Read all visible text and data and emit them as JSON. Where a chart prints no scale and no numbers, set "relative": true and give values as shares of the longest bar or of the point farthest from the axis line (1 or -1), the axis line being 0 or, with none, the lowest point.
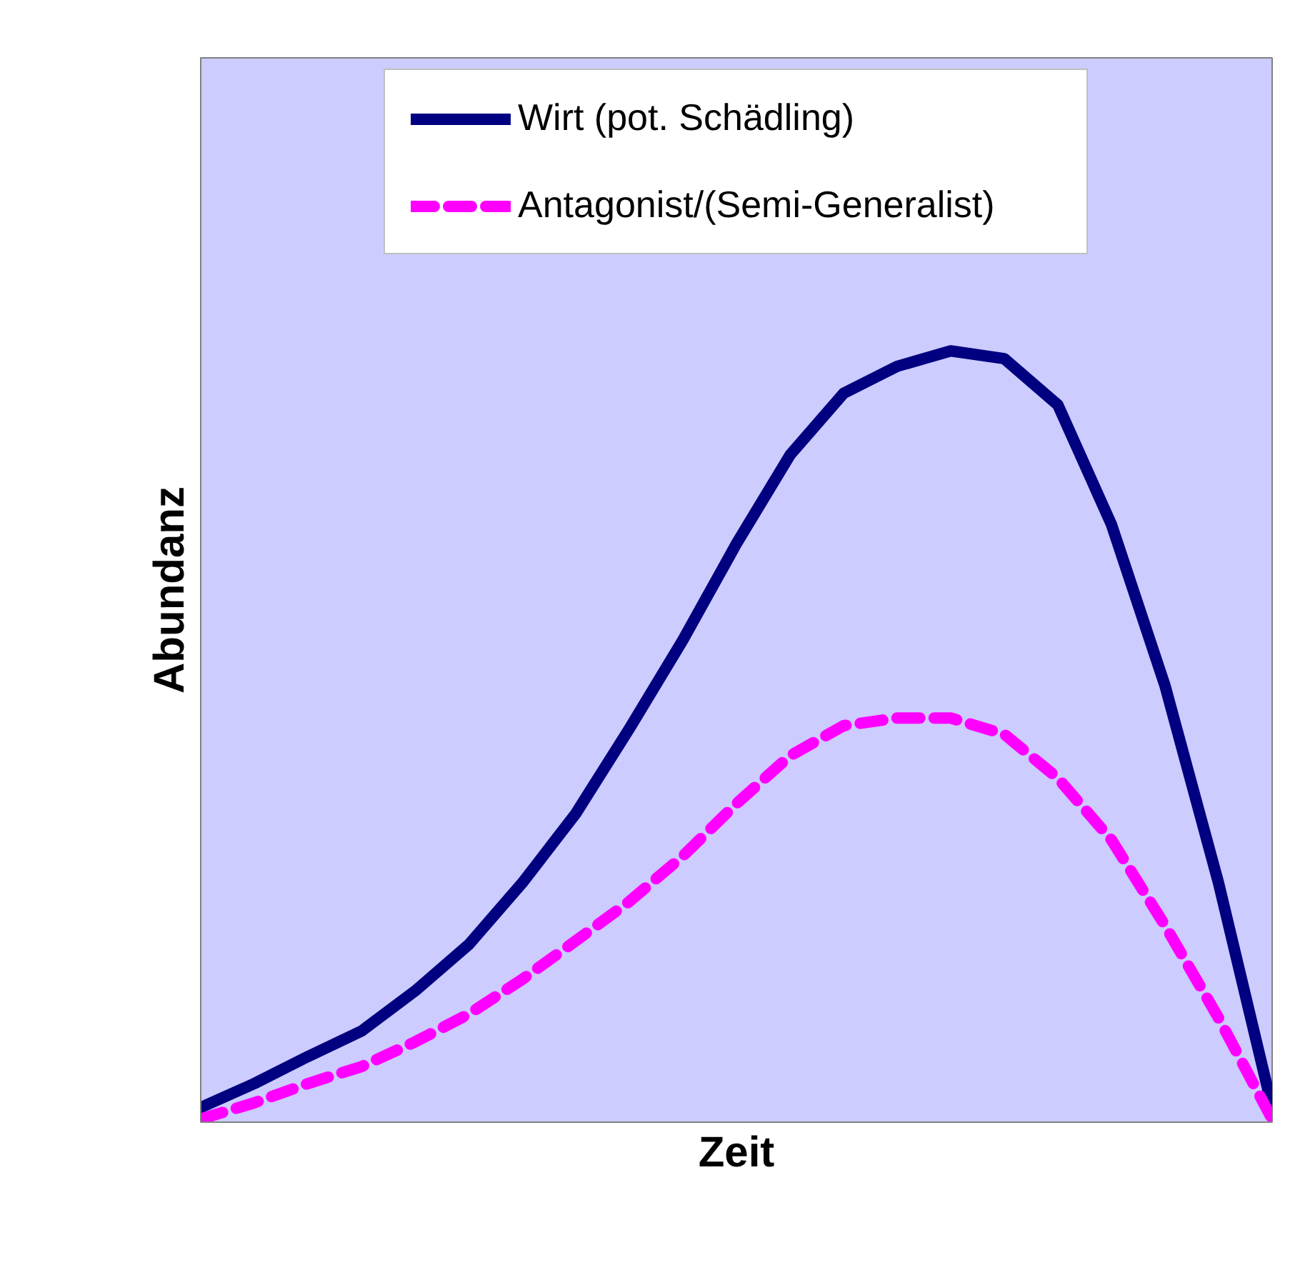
{
  "chart_data": {
    "type": "line",
    "relative": true,
    "xlabel": "Zeit",
    "ylabel": "Abundanz",
    "legend": "top",
    "categories": [
      null,
      null,
      null,
      null,
      null,
      null,
      null,
      null,
      null,
      null,
      null,
      null,
      null,
      null,
      null,
      null,
      null,
      null,
      null,
      null,
      null
    ],
    "series": [
      {
        "name": "Wirt (pot. Schädling)",
        "color": "#000080",
        "line_style": "solid",
        "values": [
          0.019,
          0.05,
          0.085,
          0.118,
          0.17,
          0.23,
          0.31,
          0.4,
          0.51,
          0.625,
          0.75,
          0.865,
          0.945,
          0.98,
          1.0,
          0.99,
          0.93,
          0.775,
          0.566,
          0.31,
          0.019
        ]
      },
      {
        "name": "Antagonist/(Semi-Generalist)",
        "color": "#ff00ff",
        "line_style": "dashed",
        "values": [
          0.004,
          0.025,
          0.05,
          0.072,
          0.104,
          0.14,
          0.185,
          0.235,
          0.286,
          0.345,
          0.413,
          0.475,
          0.514,
          0.524,
          0.524,
          0.503,
          0.446,
          0.366,
          0.255,
          0.135,
          0.004
        ]
      }
    ]
  }
}
